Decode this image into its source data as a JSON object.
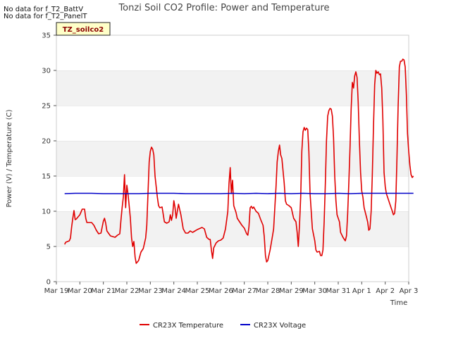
{
  "notices": [
    "No data for f_T2_BattV",
    "No data for f_T2_PanelT"
  ],
  "tag_label": "TZ_soilco2",
  "chart_data": {
    "type": "line",
    "title": "Tonzi Soil CO2 Profile: Power and Temperature",
    "xlabel": "Time",
    "ylabel": "Power (V) / Temperature (C)",
    "xlim": [
      "Mar 19",
      "Apr 3"
    ],
    "ylim": [
      0,
      35
    ],
    "x_ticks": [
      "Mar 19",
      "Mar 20",
      "Mar 21",
      "Mar 22",
      "Mar 23",
      "Mar 24",
      "Mar 25",
      "Mar 26",
      "Mar 27",
      "Mar 28",
      "Mar 29",
      "Mar 30",
      "Mar 31",
      "Apr 1",
      "Apr 2",
      "Apr 3"
    ],
    "y_ticks": [
      0,
      5,
      10,
      15,
      20,
      25,
      30,
      35
    ],
    "grid": "horizontal bands",
    "legend_position": "bottom",
    "x_unit": "days since Mar 19",
    "series": [
      {
        "name": "CR23X Temperature",
        "color": "#e00000",
        "points": [
          [
            0.35,
            5.3
          ],
          [
            0.4,
            5.6
          ],
          [
            0.55,
            5.8
          ],
          [
            0.6,
            6.2
          ],
          [
            0.65,
            7.8
          ],
          [
            0.7,
            9.0
          ],
          [
            0.75,
            10.1
          ],
          [
            0.8,
            8.8
          ],
          [
            0.85,
            8.9
          ],
          [
            1.0,
            9.5
          ],
          [
            1.1,
            10.3
          ],
          [
            1.2,
            10.3
          ],
          [
            1.25,
            9.0
          ],
          [
            1.3,
            8.4
          ],
          [
            1.5,
            8.4
          ],
          [
            1.6,
            8.0
          ],
          [
            1.7,
            7.3
          ],
          [
            1.8,
            6.8
          ],
          [
            1.9,
            6.9
          ],
          [
            2.0,
            8.6
          ],
          [
            2.05,
            9.0
          ],
          [
            2.1,
            8.3
          ],
          [
            2.15,
            7.2
          ],
          [
            2.3,
            6.5
          ],
          [
            2.5,
            6.3
          ],
          [
            2.6,
            6.6
          ],
          [
            2.7,
            6.8
          ],
          [
            2.75,
            8.8
          ],
          [
            2.8,
            10.5
          ],
          [
            2.85,
            12.0
          ],
          [
            2.9,
            15.2
          ],
          [
            2.95,
            10.5
          ],
          [
            3.0,
            13.7
          ],
          [
            3.05,
            12.4
          ],
          [
            3.1,
            10.8
          ],
          [
            3.15,
            9.0
          ],
          [
            3.2,
            6.2
          ],
          [
            3.25,
            5.0
          ],
          [
            3.3,
            5.7
          ],
          [
            3.35,
            3.5
          ],
          [
            3.4,
            2.6
          ],
          [
            3.5,
            3.0
          ],
          [
            3.6,
            4.2
          ],
          [
            3.7,
            4.7
          ],
          [
            3.8,
            6.2
          ],
          [
            3.85,
            8.0
          ],
          [
            3.9,
            12.5
          ],
          [
            3.95,
            17.0
          ],
          [
            4.0,
            18.5
          ],
          [
            4.05,
            19.1
          ],
          [
            4.1,
            18.8
          ],
          [
            4.15,
            18.0
          ],
          [
            4.2,
            15.0
          ],
          [
            4.3,
            12.0
          ],
          [
            4.35,
            10.8
          ],
          [
            4.4,
            10.5
          ],
          [
            4.5,
            10.6
          ],
          [
            4.6,
            8.5
          ],
          [
            4.7,
            8.3
          ],
          [
            4.8,
            8.5
          ],
          [
            4.85,
            9.5
          ],
          [
            4.9,
            8.7
          ],
          [
            4.95,
            9.5
          ],
          [
            5.0,
            11.5
          ],
          [
            5.05,
            10.6
          ],
          [
            5.1,
            9.0
          ],
          [
            5.2,
            11.0
          ],
          [
            5.3,
            9.5
          ],
          [
            5.4,
            7.5
          ],
          [
            5.5,
            6.9
          ],
          [
            5.6,
            6.9
          ],
          [
            5.7,
            7.2
          ],
          [
            5.8,
            7.0
          ],
          [
            5.9,
            7.2
          ],
          [
            6.0,
            7.4
          ],
          [
            6.2,
            7.7
          ],
          [
            6.3,
            7.5
          ],
          [
            6.4,
            6.3
          ],
          [
            6.5,
            6.0
          ],
          [
            6.55,
            6.0
          ],
          [
            6.6,
            4.5
          ],
          [
            6.65,
            3.3
          ],
          [
            6.7,
            4.8
          ],
          [
            6.8,
            5.5
          ],
          [
            6.9,
            5.8
          ],
          [
            7.0,
            5.9
          ],
          [
            7.1,
            6.2
          ],
          [
            7.2,
            7.5
          ],
          [
            7.3,
            10.0
          ],
          [
            7.35,
            14.0
          ],
          [
            7.4,
            16.2
          ],
          [
            7.45,
            12.5
          ],
          [
            7.5,
            14.4
          ],
          [
            7.55,
            10.8
          ],
          [
            7.65,
            9.8
          ],
          [
            7.7,
            9.0
          ],
          [
            7.8,
            8.5
          ],
          [
            7.9,
            8.0
          ],
          [
            8.0,
            7.6
          ],
          [
            8.1,
            6.8
          ],
          [
            8.15,
            6.6
          ],
          [
            8.2,
            7.8
          ],
          [
            8.25,
            10.5
          ],
          [
            8.3,
            10.7
          ],
          [
            8.35,
            10.4
          ],
          [
            8.4,
            10.6
          ],
          [
            8.5,
            10.0
          ],
          [
            8.6,
            9.7
          ],
          [
            8.7,
            8.8
          ],
          [
            8.8,
            8.0
          ],
          [
            8.85,
            6.4
          ],
          [
            8.9,
            3.7
          ],
          [
            8.95,
            2.8
          ],
          [
            9.0,
            3.0
          ],
          [
            9.1,
            4.5
          ],
          [
            9.2,
            6.5
          ],
          [
            9.25,
            7.5
          ],
          [
            9.3,
            10.5
          ],
          [
            9.35,
            13.5
          ],
          [
            9.4,
            17.0
          ],
          [
            9.45,
            18.5
          ],
          [
            9.5,
            19.4
          ],
          [
            9.55,
            18.0
          ],
          [
            9.6,
            17.5
          ],
          [
            9.7,
            14.0
          ],
          [
            9.75,
            11.5
          ],
          [
            9.8,
            11.0
          ],
          [
            9.9,
            10.8
          ],
          [
            10.0,
            10.5
          ],
          [
            10.1,
            9.0
          ],
          [
            10.2,
            8.5
          ],
          [
            10.25,
            7.0
          ],
          [
            10.3,
            5.0
          ],
          [
            10.35,
            8.0
          ],
          [
            10.4,
            12.0
          ],
          [
            10.45,
            18.5
          ],
          [
            10.5,
            21.3
          ],
          [
            10.55,
            21.9
          ],
          [
            10.6,
            21.5
          ],
          [
            10.65,
            21.8
          ],
          [
            10.7,
            21.6
          ],
          [
            10.75,
            18.5
          ],
          [
            10.8,
            12.5
          ],
          [
            10.9,
            7.5
          ],
          [
            11.0,
            5.8
          ],
          [
            11.05,
            4.5
          ],
          [
            11.1,
            4.2
          ],
          [
            11.2,
            4.3
          ],
          [
            11.25,
            3.7
          ],
          [
            11.3,
            3.7
          ],
          [
            11.35,
            4.5
          ],
          [
            11.4,
            8.5
          ],
          [
            11.45,
            14.0
          ],
          [
            11.5,
            20.0
          ],
          [
            11.55,
            23.5
          ],
          [
            11.6,
            24.3
          ],
          [
            11.65,
            24.6
          ],
          [
            11.7,
            24.5
          ],
          [
            11.75,
            23.5
          ],
          [
            11.8,
            20.5
          ],
          [
            11.85,
            15.0
          ],
          [
            11.9,
            11.5
          ],
          [
            11.95,
            9.5
          ],
          [
            12.0,
            9.0
          ],
          [
            12.05,
            8.5
          ],
          [
            12.1,
            7.0
          ],
          [
            12.2,
            6.3
          ],
          [
            12.3,
            5.8
          ],
          [
            12.35,
            6.5
          ],
          [
            12.4,
            9.5
          ],
          [
            12.45,
            14.0
          ],
          [
            12.5,
            19.0
          ],
          [
            12.55,
            24.5
          ],
          [
            12.6,
            28.3
          ],
          [
            12.65,
            27.5
          ],
          [
            12.7,
            29.2
          ],
          [
            12.75,
            29.8
          ],
          [
            12.8,
            29.0
          ],
          [
            12.85,
            25.5
          ],
          [
            12.9,
            20.0
          ],
          [
            12.95,
            15.5
          ],
          [
            13.0,
            12.9
          ],
          [
            13.05,
            12.0
          ],
          [
            13.1,
            10.5
          ],
          [
            13.2,
            9.2
          ],
          [
            13.25,
            8.5
          ],
          [
            13.3,
            7.3
          ],
          [
            13.35,
            7.5
          ],
          [
            13.4,
            10.0
          ],
          [
            13.45,
            15.0
          ],
          [
            13.5,
            22.0
          ],
          [
            13.55,
            28.0
          ],
          [
            13.6,
            30.0
          ],
          [
            13.65,
            29.6
          ],
          [
            13.7,
            29.8
          ],
          [
            13.75,
            29.4
          ],
          [
            13.8,
            29.5
          ],
          [
            13.85,
            27.5
          ],
          [
            13.9,
            23.0
          ],
          [
            13.95,
            15.5
          ],
          [
            14.0,
            13.5
          ],
          [
            14.05,
            12.5
          ],
          [
            14.1,
            12.0
          ],
          [
            14.2,
            11.0
          ],
          [
            14.3,
            10.0
          ],
          [
            14.35,
            9.5
          ],
          [
            14.4,
            9.7
          ],
          [
            14.45,
            11.5
          ],
          [
            14.5,
            17.5
          ],
          [
            14.55,
            25.0
          ],
          [
            14.6,
            30.5
          ],
          [
            14.65,
            31.3
          ],
          [
            14.7,
            31.3
          ],
          [
            14.75,
            31.6
          ],
          [
            14.8,
            31.5
          ],
          [
            14.85,
            30.5
          ],
          [
            14.9,
            26.5
          ],
          [
            14.95,
            21.0
          ],
          [
            15.0,
            18.5
          ],
          [
            15.05,
            16.5
          ],
          [
            15.1,
            15.2
          ],
          [
            15.15,
            14.8
          ],
          [
            15.2,
            15.0
          ]
        ]
      },
      {
        "name": "CR23X Voltage",
        "color": "#0000c8",
        "points": [
          [
            0.35,
            12.5
          ],
          [
            0.8,
            12.55
          ],
          [
            1.5,
            12.55
          ],
          [
            2.0,
            12.5
          ],
          [
            2.5,
            12.5
          ],
          [
            3.0,
            12.5
          ],
          [
            3.5,
            12.5
          ],
          [
            4.0,
            12.55
          ],
          [
            4.5,
            12.55
          ],
          [
            5.0,
            12.55
          ],
          [
            5.5,
            12.5
          ],
          [
            6.0,
            12.5
          ],
          [
            6.5,
            12.5
          ],
          [
            7.0,
            12.5
          ],
          [
            7.5,
            12.55
          ],
          [
            8.0,
            12.5
          ],
          [
            8.5,
            12.55
          ],
          [
            9.0,
            12.5
          ],
          [
            9.5,
            12.55
          ],
          [
            10.0,
            12.5
          ],
          [
            10.5,
            12.55
          ],
          [
            11.0,
            12.5
          ],
          [
            11.5,
            12.5
          ],
          [
            12.0,
            12.55
          ],
          [
            12.5,
            12.5
          ],
          [
            13.0,
            12.55
          ],
          [
            13.5,
            12.55
          ],
          [
            14.0,
            12.55
          ],
          [
            14.5,
            12.55
          ],
          [
            15.0,
            12.55
          ],
          [
            15.2,
            12.55
          ]
        ]
      }
    ]
  }
}
